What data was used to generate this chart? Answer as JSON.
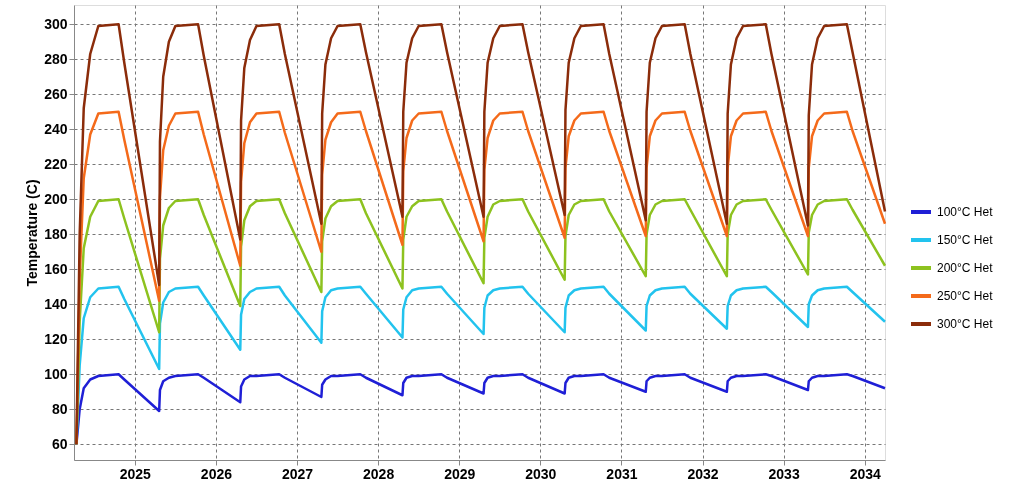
{
  "chart_data": {
    "type": "line",
    "ylabel": "Temperature (C)",
    "x": [
      2024.28,
      2024.32,
      2024.37,
      2024.45,
      2024.55,
      2024.8,
      2024.87,
      2025.3,
      2025.31,
      2025.35,
      2025.42,
      2025.5,
      2025.78,
      2025.85,
      2026.3,
      2026.31,
      2026.35,
      2026.42,
      2026.5,
      2026.78,
      2026.85,
      2027.3,
      2027.31,
      2027.35,
      2027.42,
      2027.5,
      2027.78,
      2027.85,
      2028.3,
      2028.31,
      2028.35,
      2028.42,
      2028.5,
      2028.78,
      2028.85,
      2029.3,
      2029.31,
      2029.35,
      2029.42,
      2029.5,
      2029.78,
      2029.85,
      2030.3,
      2030.31,
      2030.35,
      2030.42,
      2030.5,
      2030.78,
      2030.85,
      2031.3,
      2031.31,
      2031.35,
      2031.42,
      2031.5,
      2031.78,
      2031.85,
      2032.3,
      2032.31,
      2032.35,
      2032.42,
      2032.5,
      2032.78,
      2032.85,
      2033.3,
      2033.31,
      2033.35,
      2033.42,
      2033.5,
      2033.78,
      2033.85,
      2034.25
    ],
    "series": [
      {
        "name": "100°C Het",
        "color": "#1f1fd6",
        "values": [
          60,
          80,
          92,
          97,
          99,
          100,
          97,
          79,
          91,
          96,
          98,
          99,
          100,
          98,
          84,
          93,
          97,
          99,
          99,
          100,
          98,
          87,
          94,
          97,
          99,
          99,
          100,
          98,
          88,
          95,
          98,
          99,
          99,
          100,
          98,
          89,
          95,
          98,
          99,
          99,
          100,
          98,
          89,
          95,
          98,
          99,
          99,
          100,
          98,
          90,
          96,
          98,
          99,
          99,
          100,
          98,
          90,
          96,
          98,
          99,
          99,
          100,
          99,
          91,
          96,
          98,
          99,
          99,
          100,
          99,
          92
        ]
      },
      {
        "name": "150°C Het",
        "color": "#22c3ee",
        "values": [
          60,
          105,
          132,
          144,
          149,
          150,
          143,
          103,
          129,
          141,
          147,
          149,
          150,
          145,
          114,
          134,
          143,
          147,
          149,
          150,
          145,
          118,
          136,
          144,
          148,
          149,
          150,
          146,
          121,
          137,
          144,
          148,
          149,
          150,
          146,
          123,
          138,
          145,
          148,
          149,
          150,
          146,
          124,
          138,
          145,
          148,
          149,
          150,
          146,
          125,
          139,
          145,
          148,
          149,
          150,
          146,
          126,
          139,
          145,
          148,
          149,
          150,
          147,
          127,
          140,
          145,
          148,
          149,
          150,
          147,
          130
        ]
      },
      {
        "name": "200°C Het",
        "color": "#8dc21f",
        "values": [
          60,
          130,
          172,
          190,
          199,
          200,
          189,
          124,
          166,
          185,
          195,
          199,
          200,
          191,
          139,
          173,
          188,
          196,
          199,
          200,
          192,
          147,
          176,
          189,
          196,
          199,
          200,
          192,
          149,
          177,
          190,
          196,
          199,
          200,
          193,
          152,
          178,
          190,
          197,
          199,
          200,
          193,
          154,
          179,
          191,
          197,
          199,
          200,
          193,
          156,
          180,
          191,
          197,
          199,
          200,
          194,
          156,
          180,
          191,
          197,
          199,
          200,
          194,
          157,
          181,
          191,
          197,
          199,
          200,
          194,
          162
        ]
      },
      {
        "name": "250°C Het",
        "color": "#f46a1a",
        "values": [
          60,
          155,
          212,
          237,
          249,
          250,
          234,
          142,
          201,
          228,
          242,
          249,
          250,
          237,
          162,
          210,
          232,
          244,
          249,
          250,
          238,
          170,
          214,
          234,
          244,
          249,
          250,
          239,
          174,
          216,
          235,
          245,
          249,
          250,
          239,
          176,
          217,
          235,
          245,
          249,
          250,
          239,
          178,
          218,
          236,
          245,
          249,
          250,
          239,
          179,
          218,
          236,
          245,
          249,
          250,
          239,
          179,
          218,
          236,
          245,
          249,
          250,
          239,
          179,
          218,
          236,
          245,
          249,
          250,
          239,
          186
        ]
      },
      {
        "name": "300°C Het",
        "color": "#8b2c0a",
        "values": [
          60,
          180,
          252,
          283,
          299,
          300,
          278,
          151,
          233,
          270,
          290,
          299,
          300,
          282,
          177,
          245,
          275,
          291,
          299,
          300,
          283,
          186,
          249,
          277,
          292,
          299,
          300,
          284,
          190,
          250,
          278,
          292,
          299,
          300,
          284,
          190,
          250,
          278,
          292,
          299,
          300,
          284,
          191,
          251,
          278,
          292,
          299,
          300,
          283,
          188,
          250,
          278,
          292,
          299,
          300,
          283,
          186,
          249,
          277,
          292,
          299,
          300,
          283,
          185,
          248,
          277,
          292,
          299,
          300,
          284,
          193
        ]
      }
    ],
    "xlim": [
      2024.25,
      2034.25
    ],
    "xticks": [
      2025,
      2026,
      2027,
      2028,
      2029,
      2030,
      2031,
      2032,
      2033,
      2034
    ],
    "ylim": [
      51,
      311
    ],
    "yticks": [
      60,
      80,
      100,
      120,
      140,
      160,
      180,
      200,
      220,
      240,
      260,
      280,
      300
    ],
    "grid": true,
    "legend": "right",
    "line_style": "solid"
  }
}
